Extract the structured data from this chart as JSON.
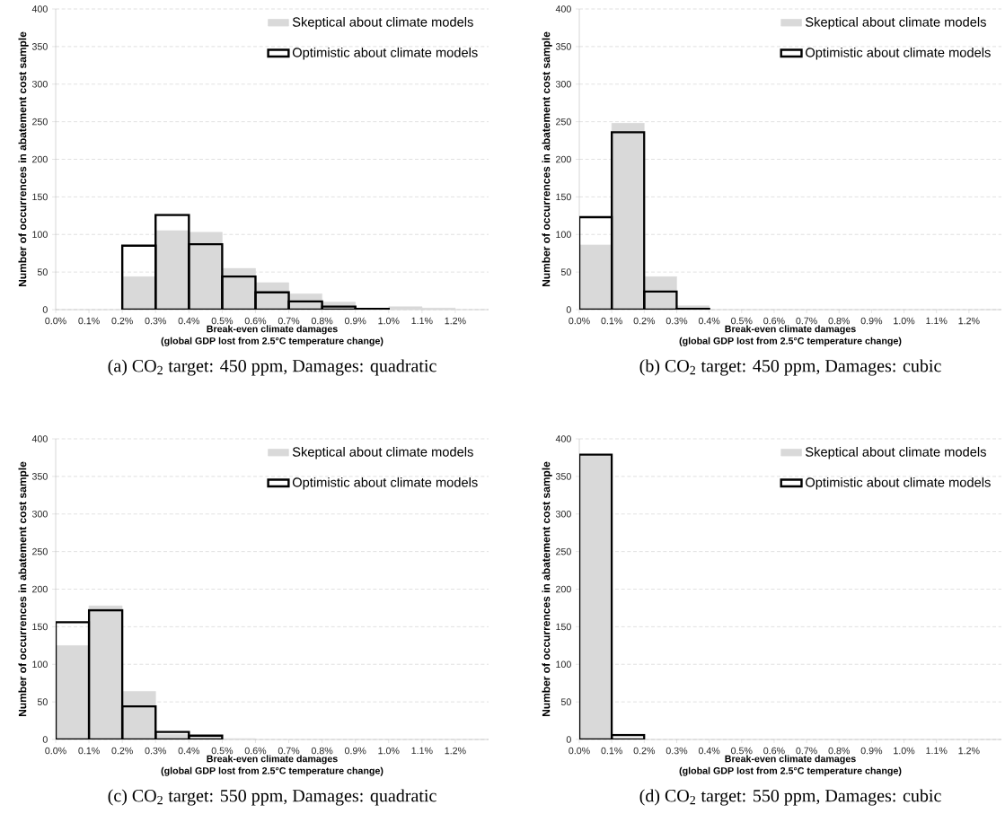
{
  "chart_data": [
    {
      "type": "histogram",
      "title": "(a) CO$_{2}$ target: 450 ppm, Damages: quadratic",
      "xlabel": "Break-even climate damages",
      "annotations": [
        "(global GDP lost from 2.5°C temperature change)"
      ],
      "ylabel": "Number of occurrences in abatement cost sample",
      "bins": [
        0,
        0.1,
        0.2,
        0.3,
        0.4,
        0.5,
        0.6,
        0.7,
        0.8,
        0.9,
        1.0,
        1.1,
        1.2
      ],
      "series": [
        {
          "name": "Skeptical about climate models",
          "color": "#d9d9d9",
          "values": [
            null,
            null,
            44,
            105,
            103,
            55,
            36,
            21,
            10,
            null,
            4,
            2
          ]
        },
        {
          "name": "Optimistic about climate models",
          "color": "#000000",
          "values": [
            null,
            null,
            85,
            126,
            87,
            44,
            23,
            11,
            4,
            1,
            null,
            null
          ]
        }
      ],
      "xlim": [
        0,
        1.3
      ],
      "ylim": [
        0,
        400
      ],
      "xticks": [
        {
          "value": 0,
          "label": "0.0%"
        },
        {
          "value": 0.1,
          "label": "0.1%"
        },
        {
          "value": 0.2,
          "label": "0.2%"
        },
        {
          "value": 0.3,
          "label": "0.3%"
        },
        {
          "value": 0.4,
          "label": "0.4%"
        },
        {
          "value": 0.5,
          "label": "0.5%"
        },
        {
          "value": 0.6,
          "label": "0.6%"
        },
        {
          "value": 0.7,
          "label": "0.7%"
        },
        {
          "value": 0.8,
          "label": "0.8%"
        },
        {
          "value": 0.9,
          "label": "0.9%"
        },
        {
          "value": 1.0,
          "label": "1.0%"
        },
        {
          "value": 1.1,
          "label": "1.1%"
        },
        {
          "value": 1.2,
          "label": "1.2%"
        }
      ],
      "yticks": [
        0,
        50,
        100,
        150,
        200,
        250,
        300,
        350,
        400
      ],
      "grid": "y",
      "legend": "top right"
    },
    {
      "type": "histogram",
      "title": "(b) CO$_{2}$ target: 450 ppm, Damages: cubic",
      "xlabel": "Break-even climate damages",
      "annotations": [
        "(global GDP lost from 2.5°C temperature change)"
      ],
      "ylabel": "Number of occurrences in abatement cost sample",
      "bins": [
        0,
        0.1,
        0.2,
        0.3,
        0.4,
        0.5,
        0.6,
        0.7,
        0.8,
        0.9,
        1.0,
        1.1,
        1.2
      ],
      "series": [
        {
          "name": "Skeptical about climate models",
          "color": "#d9d9d9",
          "values": [
            86,
            248,
            44,
            5,
            null,
            null,
            null,
            null,
            null,
            null,
            null,
            null
          ]
        },
        {
          "name": "Optimistic about climate models",
          "color": "#000000",
          "values": [
            123,
            236,
            24,
            1,
            null,
            null,
            null,
            null,
            null,
            null,
            null,
            null
          ]
        }
      ],
      "xlim": [
        0,
        1.3
      ],
      "ylim": [
        0,
        400
      ],
      "xticks": [
        {
          "value": 0,
          "label": "0.0%"
        },
        {
          "value": 0.1,
          "label": "0.1%"
        },
        {
          "value": 0.2,
          "label": "0.2%"
        },
        {
          "value": 0.3,
          "label": "0.3%"
        },
        {
          "value": 0.4,
          "label": "0.4%"
        },
        {
          "value": 0.5,
          "label": "0.5%"
        },
        {
          "value": 0.6,
          "label": "0.6%"
        },
        {
          "value": 0.7,
          "label": "0.7%"
        },
        {
          "value": 0.8,
          "label": "0.8%"
        },
        {
          "value": 0.9,
          "label": "0.9%"
        },
        {
          "value": 1.0,
          "label": "1.0%"
        },
        {
          "value": 1.1,
          "label": "1.1%"
        },
        {
          "value": 1.2,
          "label": "1.2%"
        }
      ],
      "yticks": [
        0,
        50,
        100,
        150,
        200,
        250,
        300,
        350,
        400
      ],
      "grid": "y",
      "legend": "top right"
    },
    {
      "type": "histogram",
      "title": "(c) CO$_{2}$ target: 550 ppm, Damages: quadratic",
      "xlabel": "Break-even climate damages",
      "annotations": [
        "(global GDP lost from 2.5°C temperature change)"
      ],
      "ylabel": "Number of occurrences in abatement cost sample",
      "bins": [
        0,
        0.1,
        0.2,
        0.3,
        0.4,
        0.5,
        0.6,
        0.7,
        0.8,
        0.9,
        1.0,
        1.1,
        1.2
      ],
      "series": [
        {
          "name": "Skeptical about climate models",
          "color": "#d9d9d9",
          "values": [
            125,
            178,
            64,
            7,
            3,
            1,
            null,
            null,
            null,
            null,
            null,
            null
          ]
        },
        {
          "name": "Optimistic about climate models",
          "color": "#000000",
          "values": [
            156,
            172,
            44,
            10,
            5,
            null,
            null,
            null,
            null,
            null,
            null,
            null
          ]
        }
      ],
      "xlim": [
        0,
        1.3
      ],
      "ylim": [
        0,
        400
      ],
      "xticks": [
        {
          "value": 0,
          "label": "0.0%"
        },
        {
          "value": 0.1,
          "label": "0.1%"
        },
        {
          "value": 0.2,
          "label": "0.2%"
        },
        {
          "value": 0.3,
          "label": "0.3%"
        },
        {
          "value": 0.4,
          "label": "0.4%"
        },
        {
          "value": 0.5,
          "label": "0.5%"
        },
        {
          "value": 0.6,
          "label": "0.6%"
        },
        {
          "value": 0.7,
          "label": "0.7%"
        },
        {
          "value": 0.8,
          "label": "0.8%"
        },
        {
          "value": 0.9,
          "label": "0.9%"
        },
        {
          "value": 1.0,
          "label": "1.0%"
        },
        {
          "value": 1.1,
          "label": "1.1%"
        },
        {
          "value": 1.2,
          "label": "1.2%"
        }
      ],
      "yticks": [
        0,
        50,
        100,
        150,
        200,
        250,
        300,
        350,
        400
      ],
      "grid": "y",
      "legend": "top right"
    },
    {
      "type": "histogram",
      "title": "(d) CO$_{2}$ target: 550 ppm, Damages: cubic",
      "xlabel": "Break-even climate damages",
      "annotations": [
        "(global GDP lost from 2.5°C temperature change)"
      ],
      "ylabel": "Number of occurrences in abatement cost sample",
      "bins": [
        0,
        0.1,
        0.2,
        0.3,
        0.4,
        0.5,
        0.6,
        0.7,
        0.8,
        0.9,
        1.0,
        1.1,
        1.2
      ],
      "series": [
        {
          "name": "Skeptical about climate models",
          "color": "#d9d9d9",
          "values": [
            377,
            null,
            null,
            null,
            null,
            null,
            null,
            null,
            null,
            null,
            null,
            null
          ]
        },
        {
          "name": "Optimistic about climate models",
          "color": "#000000",
          "values": [
            379,
            6,
            null,
            null,
            null,
            null,
            null,
            null,
            null,
            null,
            null,
            null
          ]
        }
      ],
      "xlim": [
        0,
        1.3
      ],
      "ylim": [
        0,
        400
      ],
      "xticks": [
        {
          "value": 0,
          "label": "0.0%"
        },
        {
          "value": 0.1,
          "label": "0.1%"
        },
        {
          "value": 0.2,
          "label": "0.2%"
        },
        {
          "value": 0.3,
          "label": "0.3%"
        },
        {
          "value": 0.4,
          "label": "0.4%"
        },
        {
          "value": 0.5,
          "label": "0.5%"
        },
        {
          "value": 0.6,
          "label": "0.6%"
        },
        {
          "value": 0.7,
          "label": "0.7%"
        },
        {
          "value": 0.8,
          "label": "0.8%"
        },
        {
          "value": 0.9,
          "label": "0.9%"
        },
        {
          "value": 1.0,
          "label": "1.0%"
        },
        {
          "value": 1.1,
          "label": "1.1%"
        },
        {
          "value": 1.2,
          "label": "1.2%"
        }
      ],
      "yticks": [
        0,
        50,
        100,
        150,
        200,
        250,
        300,
        350,
        400
      ],
      "grid": "y",
      "legend": "top right"
    }
  ]
}
